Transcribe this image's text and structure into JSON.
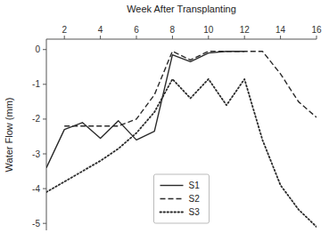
{
  "chart_data": {
    "type": "line",
    "xlabel": "Week After Transplanting",
    "ylabel": "Water Flow (mm)",
    "xlim": [
      1,
      16
    ],
    "ylim": [
      -5.2,
      0.3
    ],
    "xticks": [
      2,
      4,
      6,
      8,
      10,
      12,
      14,
      16
    ],
    "yticks": [
      0,
      -1,
      -2,
      -3,
      -4,
      -5
    ],
    "grid": false,
    "legend": "lower center",
    "series": [
      {
        "name": "S1",
        "color": "#2a2a2a",
        "line_style": "solid",
        "x": [
          1,
          2,
          3,
          4,
          5,
          6,
          7,
          8,
          9,
          10,
          11,
          12
        ],
        "values": [
          -3.4,
          -2.3,
          -2.1,
          -2.55,
          -2.05,
          -2.6,
          -2.35,
          -0.15,
          -0.35,
          -0.1,
          -0.05,
          -0.05
        ]
      },
      {
        "name": "S2",
        "color": "#2a2a2a",
        "line_style": "dashed",
        "x": [
          2,
          2.5,
          3,
          4,
          5,
          6,
          7,
          8,
          9,
          10,
          11,
          12,
          13,
          14,
          15,
          16
        ],
        "values": [
          -2.2,
          -2.2,
          -2.2,
          -2.2,
          -2.2,
          -2.0,
          -1.3,
          -0.05,
          -0.3,
          -0.05,
          -0.05,
          -0.05,
          -0.05,
          -0.7,
          -1.5,
          -1.95
        ]
      },
      {
        "name": "S3",
        "color": "#2a2a2a",
        "line_style": "dotted",
        "x": [
          1,
          2,
          3,
          4,
          5,
          6,
          7,
          8,
          9,
          10,
          11,
          12,
          13,
          14,
          15,
          16
        ],
        "values": [
          -4.1,
          -3.8,
          -3.5,
          -3.2,
          -2.85,
          -2.4,
          -1.8,
          -0.85,
          -1.4,
          -0.85,
          -1.6,
          -0.85,
          -2.6,
          -3.9,
          -4.6,
          -5.1
        ]
      }
    ]
  }
}
